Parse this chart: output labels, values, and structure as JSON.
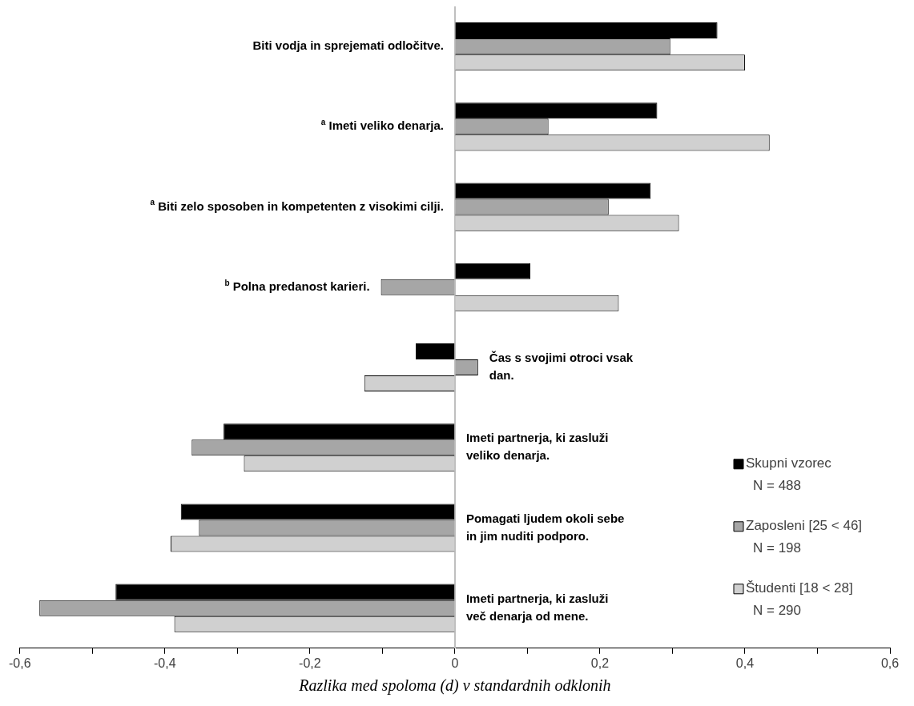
{
  "chart_data": {
    "type": "bar",
    "orientation": "horizontal",
    "xlabel": "Razlika med spoloma (d) v standardnih odklonih",
    "categories": [
      "Biti vodja in sprejemati odločitve.",
      "$^{a}$ Imeti veliko denarja.",
      "$^{a}$ Biti zelo sposoben in kompetenten z visokimi cilji.",
      "$^{b}$ Polna predanost karieri.",
      "Čas s svojimi otroci vsak dan.",
      "Imeti partnerja, ki zasluži veliko denarja.",
      "Pomagati ljudem okoli sebe in jim nuditi podporo.",
      "Imeti partnerja, ki zasluži več denarja od mene."
    ],
    "series": [
      {
        "name": "Skupni vzorec\nN = 488",
        "color": "#000000",
        "values": [
          0.362,
          0.279,
          0.27,
          0.104,
          -0.054,
          -0.319,
          -0.378,
          -0.468
        ]
      },
      {
        "name": "Zaposleni [25 < 46]\nN = 198",
        "color": "#a6a6a6",
        "values": [
          0.297,
          0.129,
          0.212,
          -0.102,
          0.032,
          -0.363,
          -0.353,
          -0.573
        ]
      },
      {
        "name": "Študenti [18 < 28]\nN = 290",
        "color": "#d0d0d0",
        "values": [
          0.4,
          0.434,
          0.309,
          0.226,
          -0.125,
          -0.291,
          -0.392,
          -0.387
        ]
      }
    ],
    "xlim": [
      -0.6,
      0.6
    ],
    "xticks": [
      {
        "value": -0.6,
        "label": "-0,6"
      },
      {
        "value": -0.5,
        "label": null
      },
      {
        "value": -0.4,
        "label": "-0,4"
      },
      {
        "value": -0.3,
        "label": null
      },
      {
        "value": -0.2,
        "label": "-0,2"
      },
      {
        "value": -0.1,
        "label": null
      },
      0,
      {
        "value": 0.1,
        "label": null
      },
      {
        "value": 0.2,
        "label": "0,2"
      },
      {
        "value": 0.3,
        "label": null
      },
      {
        "value": 0.4,
        "label": "0,4"
      },
      {
        "value": 0.5,
        "label": null
      },
      {
        "value": 0.6,
        "label": "0,6"
      }
    ],
    "grid": false,
    "legend": "bottom right"
  }
}
